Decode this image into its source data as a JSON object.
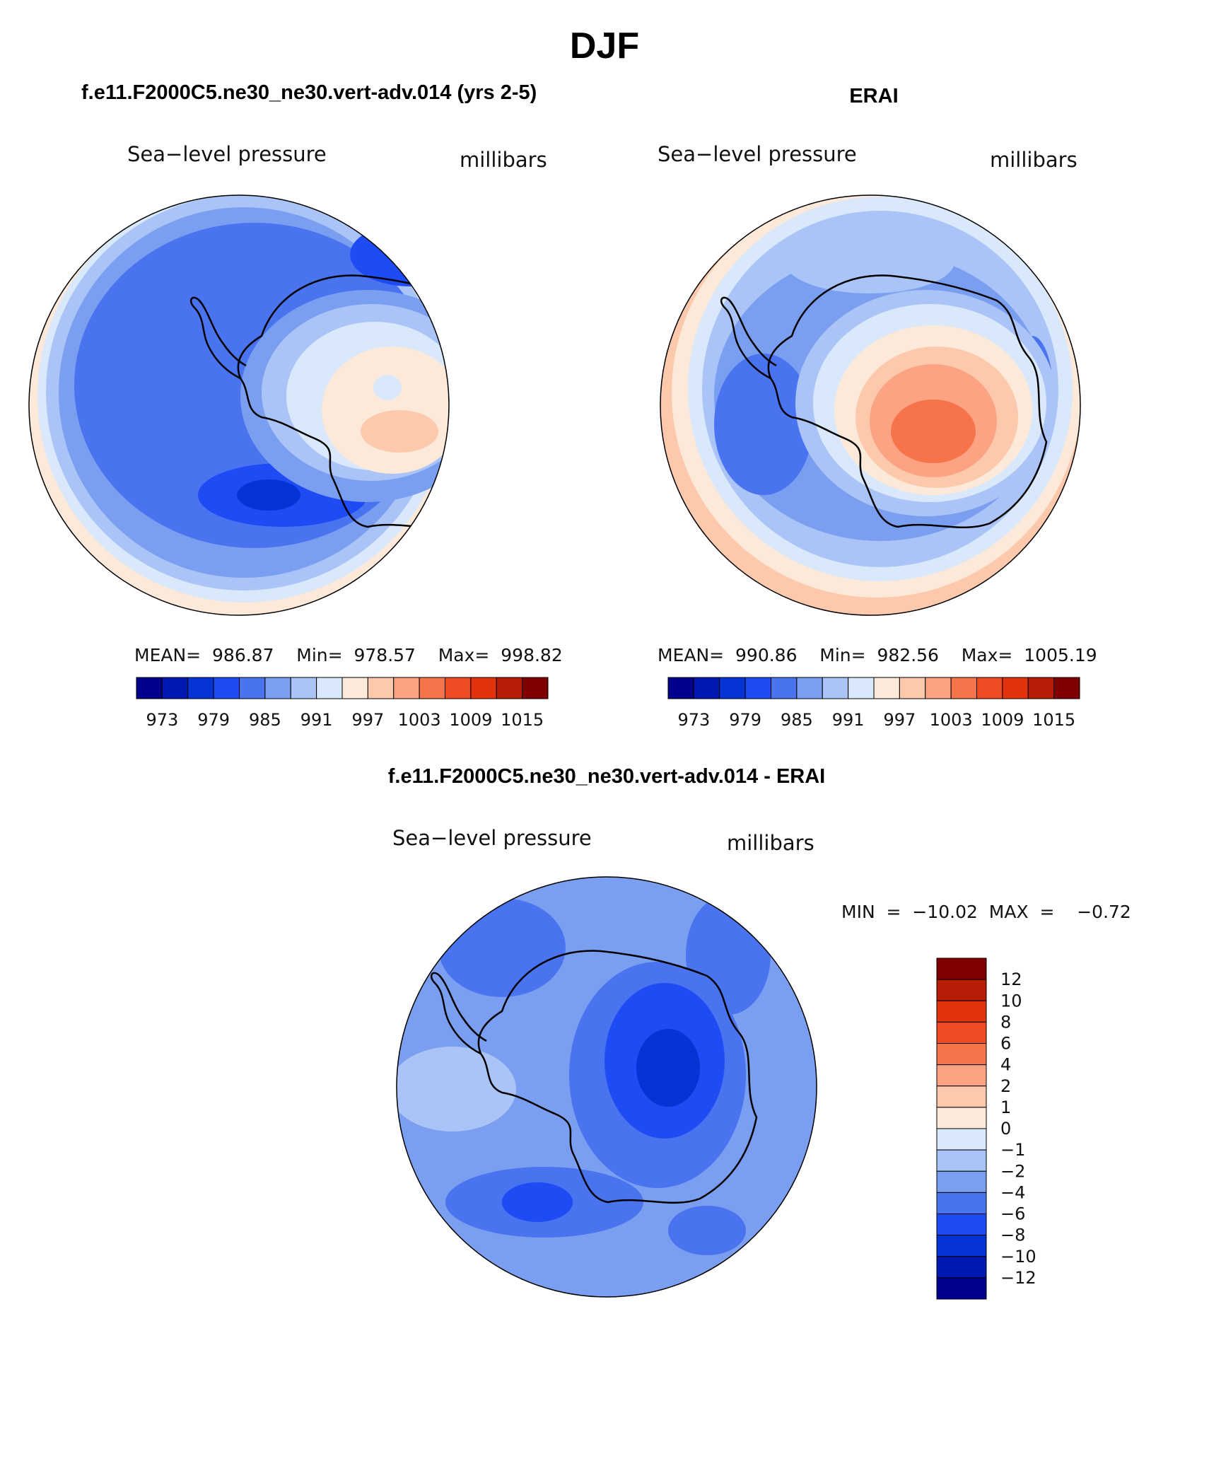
{
  "page": {
    "season": "DJF",
    "panels": [
      {
        "id": "model",
        "heading": "f.e11.F2000C5.ne30_ne30.vert-adv.014 (yrs 2-5)",
        "variable": "Sea−level pressure",
        "units": "millibars",
        "stats": "MEAN=  986.87    Min=  978.57    Max=  998.82"
      },
      {
        "id": "obs",
        "heading": "ERAI",
        "variable": "Sea−level pressure",
        "units": "millibars",
        "stats": "MEAN=  990.86    Min=  982.56    Max=  1005.19"
      },
      {
        "id": "diff",
        "heading": "f.e11.F2000C5.ne30_ne30.vert-adv.014 - ERAI",
        "variable": "Sea−level pressure",
        "units": "millibars",
        "stats": "MIN  =  −10.02  MAX  =    −0.72"
      }
    ]
  },
  "chart_data": [
    {
      "type": "heatmap",
      "projection": "south-polar stereographic",
      "title": "Sea-level pressure",
      "units": "millibars",
      "mean": 986.87,
      "min": 978.57,
      "max": 998.82,
      "contour_levels": [
        973,
        976,
        979,
        982,
        985,
        988,
        991,
        994,
        997,
        1000,
        1003,
        1006,
        1009,
        1012,
        1015
      ],
      "colorbar_tick_labels": [
        "973",
        "979",
        "985",
        "991",
        "997",
        "1003",
        "1009",
        "1015"
      ]
    },
    {
      "type": "heatmap",
      "projection": "south-polar stereographic",
      "title": "Sea-level pressure",
      "units": "millibars",
      "mean": 990.86,
      "min": 982.56,
      "max": 1005.19,
      "contour_levels": [
        973,
        976,
        979,
        982,
        985,
        988,
        991,
        994,
        997,
        1000,
        1003,
        1006,
        1009,
        1012,
        1015
      ],
      "colorbar_tick_labels": [
        "973",
        "979",
        "985",
        "991",
        "997",
        "1003",
        "1009",
        "1015"
      ]
    },
    {
      "type": "heatmap",
      "projection": "south-polar stereographic",
      "title": "Sea-level pressure",
      "units": "millibars",
      "min": -10.02,
      "max": -0.72,
      "contour_levels": [
        -12,
        -10,
        -8,
        -6,
        -4,
        -2,
        -1,
        0,
        1,
        2,
        4,
        6,
        8,
        10,
        12
      ],
      "colorbar_tick_labels": [
        "12",
        "10",
        "8",
        "6",
        "4",
        "2",
        "1",
        "0",
        "−1",
        "−2",
        "−4",
        "−6",
        "−8",
        "−10",
        "−12"
      ]
    }
  ],
  "colors": {
    "main_scale": [
      "#00008c",
      "#0019b3",
      "#0533d6",
      "#1f4bf5",
      "#4a74ef",
      "#7a9ef0",
      "#aac4f7",
      "#d9e8fa",
      "#fde9d9",
      "#fdc9ad",
      "#fba382",
      "#f7744a",
      "#f04b24",
      "#e2330d",
      "#b71d06",
      "#7f0000"
    ],
    "diff_scale": [
      "#00008c",
      "#0019b3",
      "#0533d6",
      "#1f4bf5",
      "#4a74ef",
      "#7a9ef0",
      "#aac4f7",
      "#d9e8fa",
      "#fde9d9",
      "#fdc9ad",
      "#fba382",
      "#f7744a",
      "#f04b24",
      "#e2330d",
      "#b71d06",
      "#7f0000"
    ]
  }
}
